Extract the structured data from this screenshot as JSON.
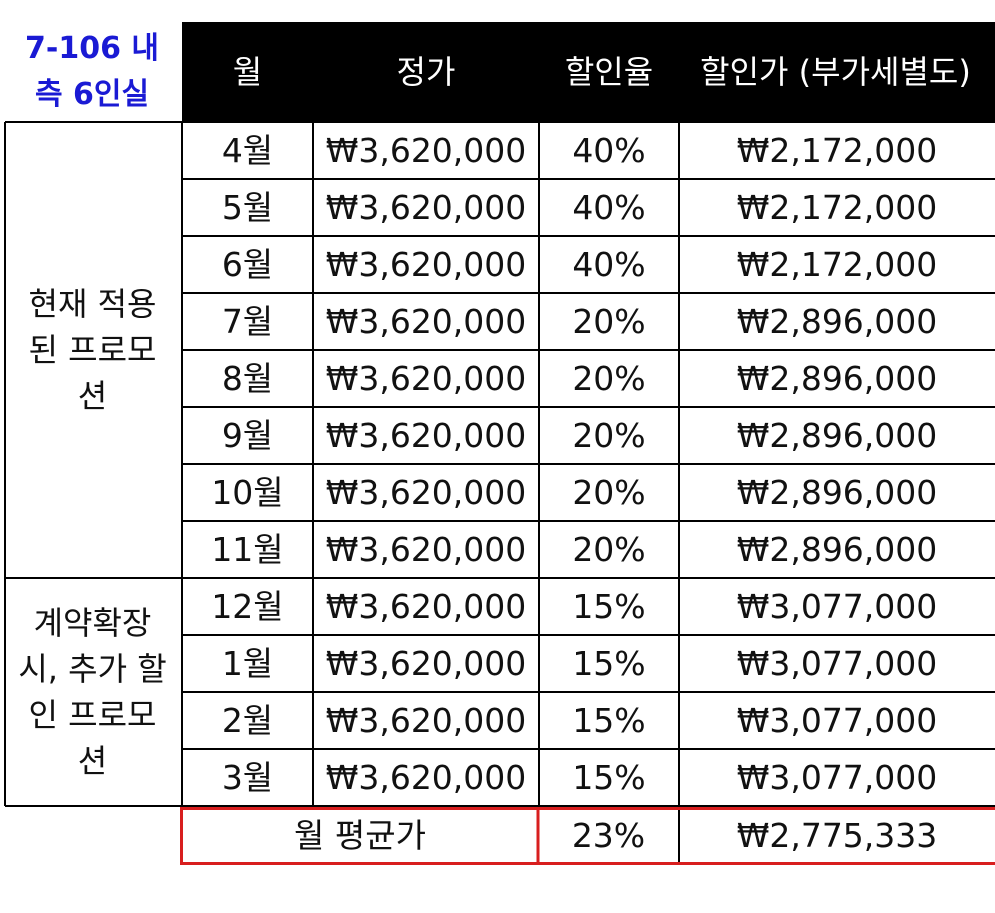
{
  "title": {
    "line1": "7-106 내",
    "line2": "측 6인실"
  },
  "header": {
    "month": "월",
    "list_price": "정가",
    "discount_rate": "할인율",
    "discount_price": "할인가 (부가세별도)"
  },
  "groups": [
    {
      "label_lines": [
        "현재 적용",
        "된 프로모",
        "션"
      ]
    },
    {
      "label_lines": [
        "계약확장",
        "시, 추가 할",
        "인 프로모",
        "션"
      ]
    }
  ],
  "rows": [
    {
      "month": "4월",
      "list_price": "₩3,620,000",
      "rate": "40%",
      "price": "₩2,172,000"
    },
    {
      "month": "5월",
      "list_price": "₩3,620,000",
      "rate": "40%",
      "price": "₩2,172,000"
    },
    {
      "month": "6월",
      "list_price": "₩3,620,000",
      "rate": "40%",
      "price": "₩2,172,000"
    },
    {
      "month": "7월",
      "list_price": "₩3,620,000",
      "rate": "20%",
      "price": "₩2,896,000"
    },
    {
      "month": "8월",
      "list_price": "₩3,620,000",
      "rate": "20%",
      "price": "₩2,896,000"
    },
    {
      "month": "9월",
      "list_price": "₩3,620,000",
      "rate": "20%",
      "price": "₩2,896,000"
    },
    {
      "month": "10월",
      "list_price": "₩3,620,000",
      "rate": "20%",
      "price": "₩2,896,000"
    },
    {
      "month": "11월",
      "list_price": "₩3,620,000",
      "rate": "20%",
      "price": "₩2,896,000"
    },
    {
      "month": "12월",
      "list_price": "₩3,620,000",
      "rate": "15%",
      "price": "₩3,077,000"
    },
    {
      "month": "1월",
      "list_price": "₩3,620,000",
      "rate": "15%",
      "price": "₩3,077,000"
    },
    {
      "month": "2월",
      "list_price": "₩3,620,000",
      "rate": "15%",
      "price": "₩3,077,000"
    },
    {
      "month": "3월",
      "list_price": "₩3,620,000",
      "rate": "15%",
      "price": "₩3,077,000"
    }
  ],
  "average": {
    "label": "월 평균가",
    "rate": "23%",
    "price": "₩2,775,333"
  },
  "colors": {
    "title": "#1a1ad4",
    "header_bg": "#000000",
    "header_text": "#ffffff",
    "average_border": "#d81e1e"
  }
}
